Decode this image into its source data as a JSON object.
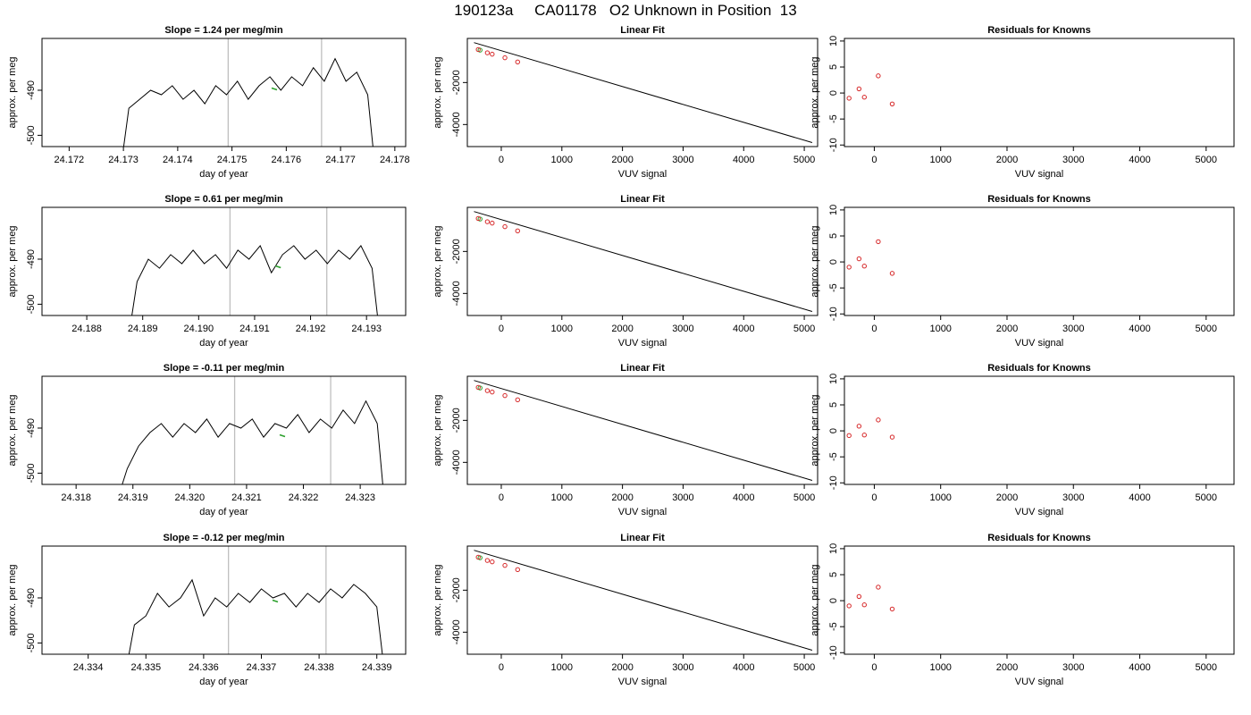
{
  "page_title": "190123a     CA01178   O2 Unknown in Position  13",
  "colors": {
    "trace": "#000000",
    "knowns": "#d62728",
    "unknown": "#2ca02c",
    "window_lines": "#bfbfbf"
  },
  "chart_data": [
    {
      "type": "line",
      "title": "Slope =  1.24  per meg/min",
      "xlabel": "day of year",
      "ylabel": "approx. per meg",
      "xlim": [
        24.1715,
        24.1782
      ],
      "ylim": [
        -502.5,
        -478.5
      ],
      "xticks": [
        24.172,
        24.173,
        24.174,
        24.175,
        24.176,
        24.177,
        24.178
      ],
      "xtick_labels": [
        "24.172",
        "24.173",
        "24.174",
        "24.175",
        "24.176",
        "24.177",
        "24.178"
      ],
      "yticks": [
        -490,
        -500
      ],
      "ytick_labels": [
        "-490",
        "-500"
      ],
      "vlines": [
        24.17493,
        24.17665
      ],
      "unknown_mean": {
        "x": 24.17578,
        "y": -489.5
      },
      "series_x": [
        24.173,
        24.1731,
        24.1733,
        24.1735,
        24.1737,
        24.1739,
        24.1741,
        24.1743,
        24.1745,
        24.1747,
        24.1749,
        24.1751,
        24.1753,
        24.1755,
        24.1757,
        24.1759,
        24.1761,
        24.1763,
        24.1765,
        24.1767,
        24.1769,
        24.1771,
        24.1773,
        24.1775,
        24.1776
      ],
      "series_y": [
        -503,
        -494,
        -492,
        -490,
        -491,
        -489,
        -492,
        -490,
        -493,
        -489,
        -491,
        -488,
        -492,
        -489,
        -487,
        -490,
        -487,
        -489,
        -485,
        -488,
        -483,
        -488,
        -486,
        -491,
        -503
      ]
    },
    {
      "type": "scatter",
      "title": "Linear Fit",
      "xlabel": "VUV signal",
      "ylabel": "approx. per meg",
      "xlim": [
        -560,
        5220
      ],
      "ylim": [
        -5050,
        100
      ],
      "xticks": [
        0,
        1000,
        2000,
        3000,
        4000,
        5000
      ],
      "xtick_labels": [
        "0",
        "1000",
        "2000",
        "3000",
        "4000",
        "5000"
      ],
      "yticks": [
        -2000,
        -4000
      ],
      "ytick_labels": [
        "-2000",
        "-4000"
      ],
      "fit_line": {
        "x": [
          -450,
          5130
        ],
        "y": [
          -100,
          -4860
        ]
      },
      "knowns": [
        {
          "x": -380,
          "y": -430
        },
        {
          "x": -230,
          "y": -585
        },
        {
          "x": -150,
          "y": -650
        },
        {
          "x": 60,
          "y": -820
        },
        {
          "x": 270,
          "y": -1020
        }
      ],
      "unknown": {
        "x": -350,
        "y": -455
      }
    },
    {
      "type": "scatter",
      "title": "Residuals for Knowns",
      "xlabel": "VUV signal",
      "ylabel": "approx. per meg",
      "xlim": [
        -450,
        5420
      ],
      "ylim": [
        -10.3,
        10.5
      ],
      "xticks": [
        0,
        1000,
        2000,
        3000,
        4000,
        5000
      ],
      "xtick_labels": [
        "0",
        "1000",
        "2000",
        "3000",
        "4000",
        "5000"
      ],
      "yticks": [
        10,
        5,
        0,
        -5,
        -10
      ],
      "ytick_labels": [
        "10",
        "5",
        "0",
        "-5",
        "-10"
      ],
      "knowns": [
        {
          "x": -380,
          "y": -1.0
        },
        {
          "x": -230,
          "y": 0.8
        },
        {
          "x": -150,
          "y": -0.8
        },
        {
          "x": 60,
          "y": 3.3
        },
        {
          "x": 270,
          "y": -2.1
        }
      ]
    },
    {
      "type": "line",
      "title": "Slope =  0.61  per meg/min",
      "xlabel": "day of year",
      "ylabel": "approx. per meg",
      "xlim": [
        24.1872,
        24.1937
      ],
      "ylim": [
        -502.5,
        -478.5
      ],
      "xticks": [
        24.188,
        24.189,
        24.19,
        24.191,
        24.192,
        24.193
      ],
      "xtick_labels": [
        "24.188",
        "24.189",
        "24.190",
        "24.191",
        "24.192",
        "24.193"
      ],
      "yticks": [
        -490,
        -500
      ],
      "ytick_labels": [
        "-490",
        "-500"
      ],
      "vlines": [
        24.19056,
        24.19229
      ],
      "unknown_mean": {
        "x": 24.19142,
        "y": -491.5
      },
      "series_x": [
        24.1888,
        24.1889,
        24.1891,
        24.1893,
        24.1895,
        24.1897,
        24.1899,
        24.1901,
        24.1903,
        24.1905,
        24.1907,
        24.1909,
        24.1911,
        24.1913,
        24.1915,
        24.1917,
        24.1919,
        24.1921,
        24.1923,
        24.1925,
        24.1927,
        24.1929,
        24.1931,
        24.1932
      ],
      "series_y": [
        -503,
        -495,
        -490,
        -492,
        -489,
        -491,
        -488,
        -491,
        -489,
        -492,
        -488,
        -490,
        -487,
        -493,
        -489,
        -487,
        -490,
        -488,
        -491,
        -488,
        -490,
        -487,
        -492,
        -503
      ]
    },
    {
      "type": "scatter",
      "title": "Linear Fit",
      "xlabel": "VUV signal",
      "ylabel": "approx. per meg",
      "xlim": [
        -560,
        5220
      ],
      "ylim": [
        -5050,
        100
      ],
      "xticks": [
        0,
        1000,
        2000,
        3000,
        4000,
        5000
      ],
      "xtick_labels": [
        "0",
        "1000",
        "2000",
        "3000",
        "4000",
        "5000"
      ],
      "yticks": [
        -2000,
        -4000
      ],
      "ytick_labels": [
        "-2000",
        "-4000"
      ],
      "fit_line": {
        "x": [
          -450,
          5130
        ],
        "y": [
          -100,
          -4860
        ]
      },
      "knowns": [
        {
          "x": -380,
          "y": -430
        },
        {
          "x": -230,
          "y": -585
        },
        {
          "x": -150,
          "y": -650
        },
        {
          "x": 60,
          "y": -820
        },
        {
          "x": 270,
          "y": -1020
        }
      ],
      "unknown": {
        "x": -350,
        "y": -455
      }
    },
    {
      "type": "scatter",
      "title": "Residuals for Knowns",
      "xlabel": "VUV signal",
      "ylabel": "approx. per meg",
      "xlim": [
        -450,
        5420
      ],
      "ylim": [
        -10.3,
        10.5
      ],
      "xticks": [
        0,
        1000,
        2000,
        3000,
        4000,
        5000
      ],
      "xtick_labels": [
        "0",
        "1000",
        "2000",
        "3000",
        "4000",
        "5000"
      ],
      "yticks": [
        10,
        5,
        0,
        -5,
        -10
      ],
      "ytick_labels": [
        "10",
        "5",
        "0",
        "-5",
        "-10"
      ],
      "knowns": [
        {
          "x": -380,
          "y": -1.0
        },
        {
          "x": -230,
          "y": 0.6
        },
        {
          "x": -150,
          "y": -0.8
        },
        {
          "x": 60,
          "y": 3.9
        },
        {
          "x": 270,
          "y": -2.2
        }
      ]
    },
    {
      "type": "line",
      "title": "Slope =  -0.11  per meg/min",
      "xlabel": "day of year",
      "ylabel": "approx. per meg",
      "xlim": [
        24.3174,
        24.3238
      ],
      "ylim": [
        -502.5,
        -478.5
      ],
      "xticks": [
        24.318,
        24.319,
        24.32,
        24.321,
        24.322,
        24.323
      ],
      "xtick_labels": [
        "24.318",
        "24.319",
        "24.320",
        "24.321",
        "24.322",
        "24.323"
      ],
      "yticks": [
        -490,
        -500
      ],
      "ytick_labels": [
        "-490",
        "-500"
      ],
      "vlines": [
        24.32079,
        24.32248
      ],
      "unknown_mean": {
        "x": 24.32163,
        "y": -491.5
      },
      "series_x": [
        24.3188,
        24.3189,
        24.3191,
        24.3193,
        24.3195,
        24.3197,
        24.3199,
        24.3201,
        24.3203,
        24.3205,
        24.3207,
        24.3209,
        24.3211,
        24.3213,
        24.3215,
        24.3217,
        24.3219,
        24.3221,
        24.3223,
        24.3225,
        24.3227,
        24.3229,
        24.3231,
        24.3233,
        24.3234
      ],
      "series_y": [
        -503,
        -499,
        -494,
        -491,
        -489,
        -492,
        -489,
        -491,
        -488,
        -492,
        -489,
        -490,
        -488,
        -492,
        -489,
        -490,
        -487,
        -491,
        -488,
        -490,
        -486,
        -489,
        -484,
        -489,
        -503
      ]
    },
    {
      "type": "scatter",
      "title": "Linear Fit",
      "xlabel": "VUV signal",
      "ylabel": "approx. per meg",
      "xlim": [
        -560,
        5220
      ],
      "ylim": [
        -5050,
        100
      ],
      "xticks": [
        0,
        1000,
        2000,
        3000,
        4000,
        5000
      ],
      "xtick_labels": [
        "0",
        "1000",
        "2000",
        "3000",
        "4000",
        "5000"
      ],
      "yticks": [
        -2000,
        -4000
      ],
      "ytick_labels": [
        "-2000",
        "-4000"
      ],
      "fit_line": {
        "x": [
          -450,
          5130
        ],
        "y": [
          -100,
          -4860
        ]
      },
      "knowns": [
        {
          "x": -380,
          "y": -430
        },
        {
          "x": -230,
          "y": -585
        },
        {
          "x": -150,
          "y": -650
        },
        {
          "x": 60,
          "y": -820
        },
        {
          "x": 270,
          "y": -1020
        }
      ],
      "unknown": {
        "x": -350,
        "y": -455
      }
    },
    {
      "type": "scatter",
      "title": "Residuals for Knowns",
      "xlabel": "VUV signal",
      "ylabel": "approx. per meg",
      "xlim": [
        -450,
        5420
      ],
      "ylim": [
        -10.3,
        10.5
      ],
      "xticks": [
        0,
        1000,
        2000,
        3000,
        4000,
        5000
      ],
      "xtick_labels": [
        "0",
        "1000",
        "2000",
        "3000",
        "4000",
        "5000"
      ],
      "yticks": [
        10,
        5,
        0,
        -5,
        -10
      ],
      "ytick_labels": [
        "10",
        "5",
        "0",
        "-5",
        "-10"
      ],
      "knowns": [
        {
          "x": -380,
          "y": -0.9
        },
        {
          "x": -230,
          "y": 0.9
        },
        {
          "x": -150,
          "y": -0.8
        },
        {
          "x": 60,
          "y": 2.1
        },
        {
          "x": 270,
          "y": -1.2
        }
      ]
    },
    {
      "type": "line",
      "title": "Slope =  -0.12  per meg/min",
      "xlabel": "day of year",
      "ylabel": "approx. per meg",
      "xlim": [
        24.3332,
        24.3395
      ],
      "ylim": [
        -502.5,
        -478.5
      ],
      "xticks": [
        24.334,
        24.335,
        24.336,
        24.337,
        24.338,
        24.339
      ],
      "xtick_labels": [
        "24.334",
        "24.335",
        "24.336",
        "24.337",
        "24.338",
        "24.339"
      ],
      "yticks": [
        -490,
        -500
      ],
      "ytick_labels": [
        "-490",
        "-500"
      ],
      "vlines": [
        24.33643,
        24.33812
      ],
      "unknown_mean": {
        "x": 24.33724,
        "y": -490.5
      },
      "series_x": [
        24.3347,
        24.3348,
        24.335,
        24.3352,
        24.3354,
        24.3356,
        24.3358,
        24.336,
        24.3362,
        24.3364,
        24.3366,
        24.3368,
        24.337,
        24.3372,
        24.3374,
        24.3376,
        24.3378,
        24.338,
        24.3382,
        24.3384,
        24.3386,
        24.3388,
        24.339,
        24.3391
      ],
      "series_y": [
        -503,
        -496,
        -494,
        -489,
        -492,
        -490,
        -486,
        -494,
        -490,
        -492,
        -489,
        -491,
        -488,
        -490,
        -489,
        -492,
        -489,
        -491,
        -488,
        -490,
        -487,
        -489,
        -492,
        -503
      ]
    },
    {
      "type": "scatter",
      "title": "Linear Fit",
      "xlabel": "VUV signal",
      "ylabel": "approx. per meg",
      "xlim": [
        -560,
        5220
      ],
      "ylim": [
        -5050,
        100
      ],
      "xticks": [
        0,
        1000,
        2000,
        3000,
        4000,
        5000
      ],
      "xtick_labels": [
        "0",
        "1000",
        "2000",
        "3000",
        "4000",
        "5000"
      ],
      "yticks": [
        -2000,
        -4000
      ],
      "ytick_labels": [
        "-2000",
        "-4000"
      ],
      "fit_line": {
        "x": [
          -450,
          5130
        ],
        "y": [
          -100,
          -4860
        ]
      },
      "knowns": [
        {
          "x": -380,
          "y": -430
        },
        {
          "x": -230,
          "y": -585
        },
        {
          "x": -150,
          "y": -650
        },
        {
          "x": 60,
          "y": -820
        },
        {
          "x": 270,
          "y": -1020
        }
      ],
      "unknown": {
        "x": -350,
        "y": -455
      }
    },
    {
      "type": "scatter",
      "title": "Residuals for Knowns",
      "xlabel": "VUV signal",
      "ylabel": "approx. per meg",
      "xlim": [
        -450,
        5420
      ],
      "ylim": [
        -10.3,
        10.5
      ],
      "xticks": [
        0,
        1000,
        2000,
        3000,
        4000,
        5000
      ],
      "xtick_labels": [
        "0",
        "1000",
        "2000",
        "3000",
        "4000",
        "5000"
      ],
      "yticks": [
        10,
        5,
        0,
        -5,
        -10
      ],
      "ytick_labels": [
        "10",
        "5",
        "0",
        "-5",
        "-10"
      ],
      "knowns": [
        {
          "x": -380,
          "y": -1.0
        },
        {
          "x": -230,
          "y": 0.8
        },
        {
          "x": -150,
          "y": -0.8
        },
        {
          "x": 60,
          "y": 2.6
        },
        {
          "x": 270,
          "y": -1.6
        }
      ]
    }
  ]
}
